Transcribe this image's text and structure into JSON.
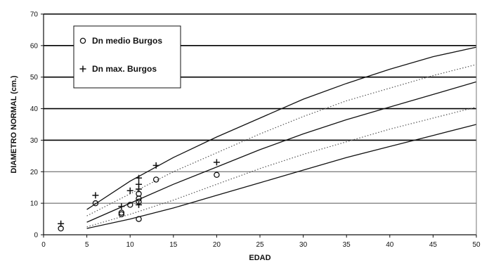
{
  "chart_data": {
    "type": "scatter",
    "xlabel": "EDAD",
    "ylabel": "DIAMETRO NORMAL (cm.)",
    "xlim": [
      0,
      50
    ],
    "ylim": [
      0,
      70
    ],
    "xticks": [
      0,
      5,
      10,
      15,
      20,
      25,
      30,
      35,
      40,
      45,
      50
    ],
    "yticks": [
      0,
      10,
      20,
      30,
      40,
      50,
      60,
      70
    ],
    "grid": "horizontal",
    "legend_position": "top-left",
    "legend": [
      {
        "marker": "circle",
        "label": "Dn medio Burgos"
      },
      {
        "marker": "plus",
        "label": "Dn max. Burgos"
      }
    ],
    "series": [
      {
        "name": "Dn medio Burgos",
        "marker": "circle",
        "points": [
          [
            2,
            2
          ],
          [
            6,
            10
          ],
          [
            9,
            7
          ],
          [
            9,
            6.5
          ],
          [
            10,
            9.5
          ],
          [
            11,
            13
          ],
          [
            11,
            11.5
          ],
          [
            11,
            10.5
          ],
          [
            11,
            5
          ],
          [
            13,
            17.5
          ],
          [
            20,
            19
          ]
        ]
      },
      {
        "name": "Dn max. Burgos",
        "marker": "plus",
        "points": [
          [
            2,
            3.5
          ],
          [
            6,
            12.5
          ],
          [
            9,
            9
          ],
          [
            10,
            14
          ],
          [
            11,
            18
          ],
          [
            11,
            16
          ],
          [
            11,
            14.5
          ],
          [
            11,
            9.5
          ],
          [
            13,
            22
          ],
          [
            20,
            23
          ]
        ]
      }
    ],
    "curves": [
      {
        "style": "solid",
        "x": [
          5,
          10,
          15,
          20,
          25,
          30,
          35,
          40,
          45,
          50
        ],
        "y": [
          8,
          17,
          24.5,
          31,
          37,
          43,
          48,
          52.5,
          56.5,
          59.5
        ]
      },
      {
        "style": "dotted",
        "x": [
          5,
          10,
          15,
          20,
          25,
          30,
          35,
          40,
          45,
          50
        ],
        "y": [
          6,
          13,
          20,
          26,
          32,
          37.5,
          42.5,
          46.5,
          50.5,
          54
        ]
      },
      {
        "style": "solid",
        "x": [
          5,
          10,
          15,
          20,
          25,
          30,
          35,
          40,
          45,
          50
        ],
        "y": [
          4,
          10,
          16,
          21.5,
          27,
          32,
          36.5,
          40.5,
          44.5,
          48.5
        ]
      },
      {
        "style": "dotted",
        "x": [
          5,
          10,
          15,
          20,
          25,
          30,
          35,
          40,
          45,
          50
        ],
        "y": [
          2.5,
          6.5,
          11,
          16,
          21,
          25.5,
          29.5,
          33.5,
          37,
          40.5
        ]
      },
      {
        "style": "solid",
        "x": [
          5,
          10,
          15,
          20,
          25,
          30,
          35,
          40,
          45,
          50
        ],
        "y": [
          2,
          5,
          8.5,
          12.5,
          16.5,
          20.5,
          24.5,
          28,
          31.5,
          35
        ]
      }
    ]
  }
}
